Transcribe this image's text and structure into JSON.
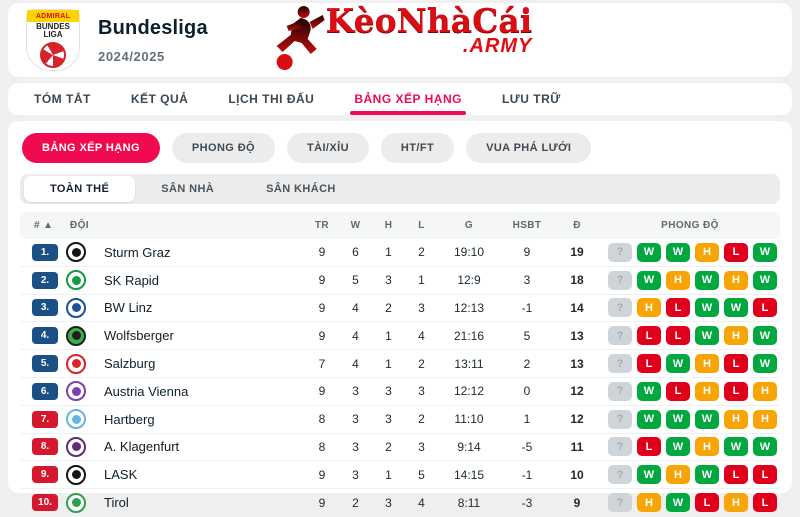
{
  "header": {
    "competition": "Bundesliga",
    "season": "2024/2025",
    "league_logo_top": "ADMIRAL",
    "league_logo_mid": "BUNDES",
    "league_logo_mid2": "LIGA"
  },
  "brand": {
    "logo_text": "KèoNhàCái",
    "logo_suffix": ".ARMY"
  },
  "nav": {
    "items": [
      {
        "label": "TÓM TẮT",
        "active": false
      },
      {
        "label": "KẾT QUẢ",
        "active": false
      },
      {
        "label": "LỊCH THI ĐẤU",
        "active": false
      },
      {
        "label": "BẢNG XẾP HẠNG",
        "active": true
      },
      {
        "label": "LƯU TRỮ",
        "active": false
      }
    ]
  },
  "subtabs": {
    "items": [
      {
        "label": "BẢNG XẾP HẠNG",
        "active": true
      },
      {
        "label": "PHONG ĐỘ",
        "active": false
      },
      {
        "label": "TÀI/XỈU",
        "active": false
      },
      {
        "label": "HT/FT",
        "active": false
      },
      {
        "label": "VUA PHÁ LƯỚI",
        "active": false
      }
    ]
  },
  "scope_tabs": {
    "items": [
      {
        "label": "TOÀN THỂ",
        "active": true
      },
      {
        "label": "SÂN NHÀ",
        "active": false
      },
      {
        "label": "SÂN KHÁCH",
        "active": false
      }
    ]
  },
  "table": {
    "columns": [
      "# ▲",
      "ĐỘI",
      "TR",
      "W",
      "H",
      "L",
      "G",
      "HSBT",
      "Đ",
      "PHONG ĐỘ"
    ],
    "rows": [
      {
        "pos": "1.",
        "group": "blue",
        "team": "Sturm Graz",
        "logo_icon": "sturm-graz-logo",
        "logo_colors": [
          "#151515",
          "#ffffff"
        ],
        "tr": 9,
        "w": 6,
        "h": 1,
        "l": 2,
        "g": "19:10",
        "hsbt": "9",
        "d": 19,
        "form": [
          "?",
          "W",
          "W",
          "H",
          "L",
          "W"
        ]
      },
      {
        "pos": "2.",
        "group": "blue",
        "team": "SK Rapid",
        "logo_icon": "sk-rapid-logo",
        "logo_colors": [
          "#159a46",
          "#ffffff"
        ],
        "tr": 9,
        "w": 5,
        "h": 3,
        "l": 1,
        "g": "12:9",
        "hsbt": "3",
        "d": 18,
        "form": [
          "?",
          "W",
          "H",
          "W",
          "H",
          "W"
        ]
      },
      {
        "pos": "3.",
        "group": "blue",
        "team": "BW Linz",
        "logo_icon": "bw-linz-logo",
        "logo_colors": [
          "#1e4e9c",
          "#ffffff"
        ],
        "tr": 9,
        "w": 4,
        "h": 2,
        "l": 3,
        "g": "12:13",
        "hsbt": "-1",
        "d": 14,
        "form": [
          "?",
          "H",
          "L",
          "W",
          "W",
          "L"
        ]
      },
      {
        "pos": "4.",
        "group": "blue",
        "team": "Wolfsberger",
        "logo_icon": "wolfsberger-logo",
        "logo_colors": [
          "#1f1f1f",
          "#3fae49"
        ],
        "tr": 9,
        "w": 4,
        "h": 1,
        "l": 4,
        "g": "21:16",
        "hsbt": "5",
        "d": 13,
        "form": [
          "?",
          "L",
          "L",
          "W",
          "H",
          "W"
        ]
      },
      {
        "pos": "5.",
        "group": "blue",
        "team": "Salzburg",
        "logo_icon": "salzburg-logo",
        "logo_colors": [
          "#d8232a",
          "#ffffff"
        ],
        "tr": 7,
        "w": 4,
        "h": 1,
        "l": 2,
        "g": "13:11",
        "hsbt": "2",
        "d": 13,
        "form": [
          "?",
          "L",
          "W",
          "H",
          "L",
          "W"
        ]
      },
      {
        "pos": "6.",
        "group": "blue",
        "team": "Austria Vienna",
        "logo_icon": "austria-vienna-logo",
        "logo_colors": [
          "#7b3fae",
          "#ffffff"
        ],
        "tr": 9,
        "w": 3,
        "h": 3,
        "l": 3,
        "g": "12:12",
        "hsbt": "0",
        "d": 12,
        "form": [
          "?",
          "W",
          "L",
          "H",
          "L",
          "H"
        ]
      },
      {
        "pos": "7.",
        "group": "red",
        "team": "Hartberg",
        "logo_icon": "hartberg-logo",
        "logo_colors": [
          "#64b5e0",
          "#ffffff"
        ],
        "tr": 8,
        "w": 3,
        "h": 3,
        "l": 2,
        "g": "11:10",
        "hsbt": "1",
        "d": 12,
        "form": [
          "?",
          "W",
          "W",
          "W",
          "H",
          "H"
        ]
      },
      {
        "pos": "8.",
        "group": "red",
        "team": "A. Klagenfurt",
        "logo_icon": "a-klagenfurt-logo",
        "logo_colors": [
          "#5e2d79",
          "#ffffff"
        ],
        "tr": 8,
        "w": 3,
        "h": 2,
        "l": 3,
        "g": "9:14",
        "hsbt": "-5",
        "d": 11,
        "form": [
          "?",
          "L",
          "W",
          "H",
          "W",
          "W"
        ]
      },
      {
        "pos": "9.",
        "group": "red",
        "team": "LASK",
        "logo_icon": "lask-logo",
        "logo_colors": [
          "#141414",
          "#ffffff"
        ],
        "tr": 9,
        "w": 3,
        "h": 1,
        "l": 5,
        "g": "14:15",
        "hsbt": "-1",
        "d": 10,
        "form": [
          "?",
          "W",
          "H",
          "W",
          "L",
          "L"
        ]
      },
      {
        "pos": "10.",
        "group": "red",
        "team": "Tirol",
        "logo_icon": "tirol-logo",
        "logo_colors": [
          "#2e9e4f",
          "#ffffff"
        ],
        "tr": 9,
        "w": 2,
        "h": 3,
        "l": 4,
        "g": "8:11",
        "hsbt": "-3",
        "d": 9,
        "form": [
          "?",
          "H",
          "W",
          "L",
          "H",
          "L"
        ]
      }
    ]
  },
  "colors": {
    "accent": "#f00a50",
    "badge_blue": "#1b5087",
    "badge_red": "#d5182d",
    "form_win": "#00a83f",
    "form_draw": "#f7a407",
    "form_loss": "#e0001b",
    "form_unknown": "#cfd4d9"
  }
}
